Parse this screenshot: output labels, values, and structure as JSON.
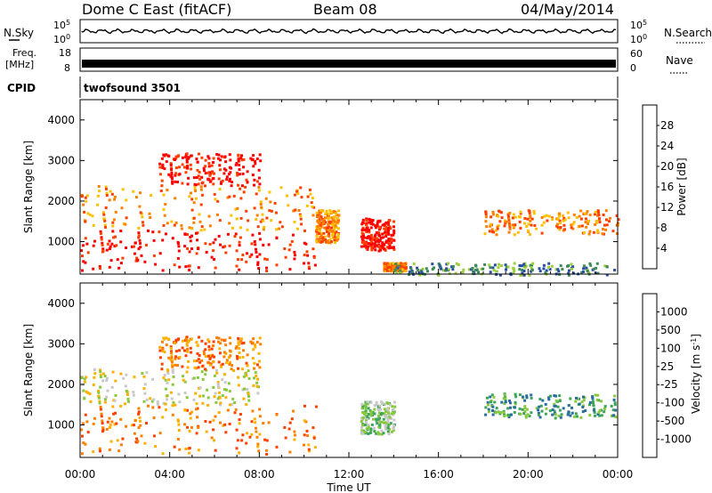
{
  "header": {
    "station": "Dome C East (fitACF)",
    "beam": "Beam 08",
    "date": "04/May/2014"
  },
  "noise_panel": {
    "left_label": "N.Sky",
    "right_label": "N.Search",
    "left_ticks": [
      "10^5",
      "10^0"
    ],
    "right_ticks": [
      "10^5",
      "10^0"
    ]
  },
  "freq_panel": {
    "left_label_top": "Freq.",
    "left_label_bottom": "[MHz]",
    "right_label": "Nave",
    "left_ticks": [
      "18",
      "8"
    ],
    "right_ticks": [
      "60",
      "0"
    ]
  },
  "cpid_panel": {
    "label": "CPID",
    "value": "twofsound 3501"
  },
  "colors": {
    "power_scale": [
      "#0000ff",
      "#2a4ea0",
      "#3d8a5a",
      "#9ccf3c",
      "#ffc000",
      "#ff8000",
      "#ff4000",
      "#ff0000"
    ],
    "velocity_scale": [
      "#ff0000",
      "#ff4000",
      "#ff8000",
      "#ffb000",
      "#c8c8c8",
      "#88c83c",
      "#3da55a",
      "#2a6ea0",
      "#1e3cb4"
    ]
  },
  "chart_data": [
    {
      "type": "heatmap",
      "panel": "power",
      "ylabel": "Slant Range [km]",
      "yticks": [
        "1000",
        "2000",
        "3000",
        "4000"
      ],
      "ylim": [
        200,
        4500
      ],
      "xticks": [
        "00:00",
        "04:00",
        "08:00",
        "12:00",
        "16:00",
        "20:00",
        "00:00"
      ],
      "xlim_hours": [
        0,
        24
      ],
      "colorbar_label": "Power [dB]",
      "colorbar_ticks": [
        "4",
        "8",
        "12",
        "16",
        "20",
        "24",
        "28"
      ],
      "regions_approx": [
        {
          "start": "00:00",
          "end": "10:30",
          "range_km": [
            300,
            1300
          ],
          "level": "high (>28 dB)"
        },
        {
          "start": "00:00",
          "end": "10:30",
          "range_km": [
            1300,
            2400
          ],
          "level": "moderate (12-24 dB)"
        },
        {
          "start": "03:30",
          "end": "08:00",
          "range_km": [
            2400,
            3200
          ],
          "level": "high (20-28 dB)"
        },
        {
          "start": "10:30",
          "end": "11:30",
          "range_km": [
            1000,
            1800
          ],
          "level": "moderate (16-24 dB)"
        },
        {
          "start": "12:30",
          "end": "14:00",
          "range_km": [
            800,
            1600
          ],
          "level": "high (20-28 dB)"
        },
        {
          "start": "13:30",
          "end": "14:30",
          "range_km": [
            300,
            500
          ],
          "level": "moderate (16-24 dB)"
        },
        {
          "start": "18:00",
          "end": "24:00",
          "range_km": [
            1200,
            1800
          ],
          "level": "moderate (16-28 dB)"
        },
        {
          "start": "14:00",
          "end": "24:00",
          "range_km": [
            200,
            500
          ],
          "level": "low (4-16 dB)"
        }
      ]
    },
    {
      "type": "heatmap",
      "panel": "velocity",
      "ylabel": "Slant Range [km]",
      "yticks": [
        "1000",
        "2000",
        "3000",
        "4000"
      ],
      "ylim": [
        200,
        4500
      ],
      "xticks": [
        "00:00",
        "04:00",
        "08:00",
        "12:00",
        "16:00",
        "20:00",
        "00:00"
      ],
      "xlim_hours": [
        0,
        24
      ],
      "xlabel": "Time UT",
      "colorbar_label": "Velocity [m s^-1]",
      "colorbar_ticks": [
        "1000",
        "500",
        "100",
        "25",
        "-25",
        "-100",
        "-500",
        "-1000"
      ],
      "regions_approx": [
        {
          "start": "00:00",
          "end": "10:30",
          "range_km": [
            300,
            1500
          ],
          "level": "-100 to -500 m/s"
        },
        {
          "start": "00:00",
          "end": "08:00",
          "range_km": [
            1500,
            2400
          ],
          "level": "-25 to 25 m/s"
        },
        {
          "start": "03:30",
          "end": "08:00",
          "range_km": [
            2400,
            3200
          ],
          "level": "-100 m/s"
        },
        {
          "start": "12:30",
          "end": "14:00",
          "range_km": [
            800,
            1600
          ],
          "level": "100 m/s"
        },
        {
          "start": "18:00",
          "end": "24:00",
          "range_km": [
            1200,
            1800
          ],
          "level": "100 to 500 m/s"
        }
      ]
    }
  ]
}
